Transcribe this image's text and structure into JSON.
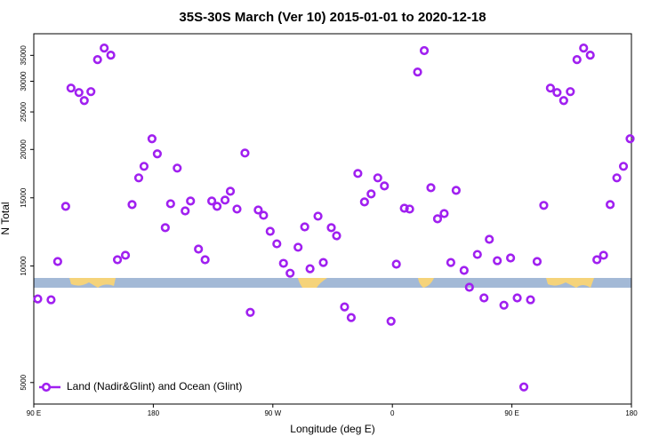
{
  "chart_data": {
    "type": "scatter",
    "title": "35S-30S March (Ver 10)   2015-01-01 to 2020-12-18",
    "xlabel": "Longitude (deg E)",
    "ylabel": "N Total",
    "xlim": [
      90,
      540
    ],
    "xticks": [
      {
        "value": 90,
        "label": "90 E"
      },
      {
        "value": 180,
        "label": "180"
      },
      {
        "value": 270,
        "label": "90 W"
      },
      {
        "value": 360,
        "label": "0"
      },
      {
        "value": 450,
        "label": "90 E"
      },
      {
        "value": 540,
        "label": "180"
      }
    ],
    "ylim": [
      4400,
      39800
    ],
    "yticks": [
      5000,
      10000,
      15000,
      20000,
      25000,
      30000,
      35000
    ],
    "log_y": true,
    "legend": "bottom-left",
    "series": [
      {
        "name": "Land (Nadir&Glint) and Ocean (Glint)",
        "color": "#a020f0",
        "x": [
          93,
          103,
          108,
          114,
          118,
          124,
          128,
          133,
          138,
          143,
          148,
          153,
          159,
          164,
          169,
          173,
          179,
          183,
          189,
          193,
          198,
          204,
          208,
          214,
          219,
          224,
          228,
          234,
          238,
          243,
          249,
          253,
          259,
          263,
          268,
          273,
          278,
          283,
          289,
          294,
          298,
          304,
          308,
          314,
          318,
          324,
          329,
          334,
          339,
          344,
          349,
          354,
          359,
          363,
          369,
          373,
          379,
          384,
          389,
          394,
          399,
          404,
          408,
          414,
          418,
          424,
          429,
          433,
          439,
          444,
          449,
          454,
          459,
          464,
          469,
          474,
          479,
          484,
          489,
          494,
          499,
          504,
          509,
          514,
          519,
          524,
          529,
          534,
          539
        ],
        "values": [
          8220,
          8180,
          10270,
          14260,
          28810,
          28060,
          26750,
          28210,
          34130,
          36550,
          35040,
          10380,
          10660,
          14410,
          16890,
          18090,
          21310,
          19480,
          12560,
          14480,
          17900,
          13880,
          14720,
          11060,
          10380,
          14720,
          14260,
          14800,
          15600,
          14030,
          19580,
          7590,
          13950,
          13520,
          12290,
          11410,
          10160,
          9580,
          11180,
          12620,
          9840,
          13450,
          10210,
          12560,
          11970,
          7840,
          7360,
          17340,
          14640,
          15350,
          16890,
          16100,
          7200,
          10110,
          14100,
          14030,
          31700,
          36000,
          15930,
          13240,
          13660,
          10210,
          15680,
          9740,
          8810,
          10710,
          8270,
          11720,
          10320,
          7920,
          10490,
          8270,
          4870,
          8180,
          10270,
          14340,
          28810,
          28060,
          26750,
          28210,
          34130,
          36550,
          35040,
          10380,
          10660,
          14410,
          16890,
          18090,
          21310
        ]
      }
    ]
  }
}
